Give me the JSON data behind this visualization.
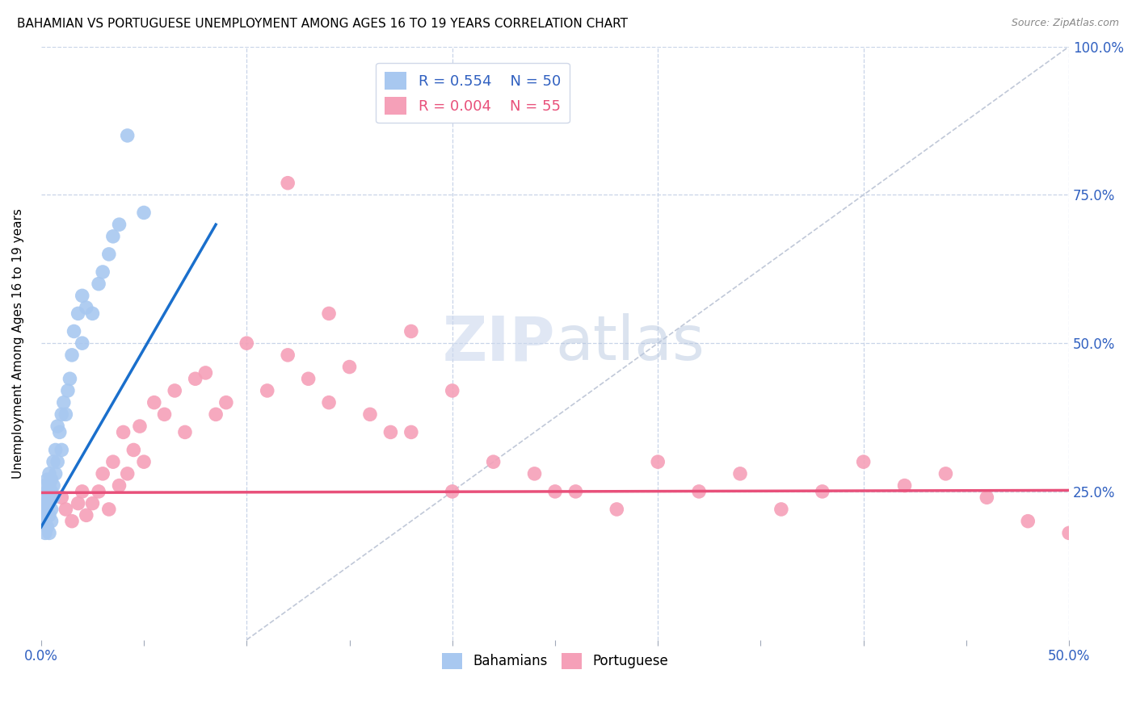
{
  "title": "BAHAMIAN VS PORTUGUESE UNEMPLOYMENT AMONG AGES 16 TO 19 YEARS CORRELATION CHART",
  "source": "Source: ZipAtlas.com",
  "ylabel": "Unemployment Among Ages 16 to 19 years",
  "xlim": [
    0,
    0.5
  ],
  "ylim": [
    0,
    1.0
  ],
  "xticks": [
    0.0,
    0.05,
    0.1,
    0.15,
    0.2,
    0.25,
    0.3,
    0.35,
    0.4,
    0.45,
    0.5
  ],
  "xticklabels": [
    "0.0%",
    "",
    "",
    "",
    "",
    "",
    "",
    "",
    "",
    "",
    "50.0%"
  ],
  "yticks": [
    0.0,
    0.25,
    0.5,
    0.75,
    1.0
  ],
  "yticklabels": [
    "",
    "25.0%",
    "50.0%",
    "75.0%",
    "100.0%"
  ],
  "watermark_zip": "ZIP",
  "watermark_atlas": "atlas",
  "legend_label1": "Bahamians",
  "legend_label2": "Portuguese",
  "bahamian_color": "#a8c8f0",
  "portuguese_color": "#f5a0b8",
  "bahamian_line_color": "#1a6fcc",
  "portuguese_line_color": "#e8507a",
  "ref_line_color": "#c0c8d8",
  "grid_color": "#c8d4e8",
  "legend_blue": "#3060c0",
  "legend_pink": "#e8507a",
  "bahamian_x": [
    0.001,
    0.001,
    0.001,
    0.002,
    0.002,
    0.002,
    0.002,
    0.002,
    0.003,
    0.003,
    0.003,
    0.003,
    0.003,
    0.004,
    0.004,
    0.004,
    0.004,
    0.004,
    0.005,
    0.005,
    0.005,
    0.005,
    0.006,
    0.006,
    0.006,
    0.007,
    0.007,
    0.008,
    0.008,
    0.009,
    0.01,
    0.01,
    0.011,
    0.012,
    0.013,
    0.014,
    0.015,
    0.016,
    0.018,
    0.02,
    0.02,
    0.022,
    0.025,
    0.028,
    0.03,
    0.033,
    0.035,
    0.038,
    0.042,
    0.05
  ],
  "bahamian_y": [
    0.2,
    0.22,
    0.23,
    0.18,
    0.2,
    0.22,
    0.24,
    0.26,
    0.19,
    0.21,
    0.23,
    0.25,
    0.27,
    0.18,
    0.21,
    0.24,
    0.26,
    0.28,
    0.2,
    0.22,
    0.25,
    0.27,
    0.24,
    0.26,
    0.3,
    0.28,
    0.32,
    0.3,
    0.36,
    0.35,
    0.32,
    0.38,
    0.4,
    0.38,
    0.42,
    0.44,
    0.48,
    0.52,
    0.55,
    0.5,
    0.58,
    0.56,
    0.55,
    0.6,
    0.62,
    0.65,
    0.68,
    0.7,
    0.85,
    0.72
  ],
  "portuguese_x": [
    0.01,
    0.012,
    0.015,
    0.018,
    0.02,
    0.022,
    0.025,
    0.028,
    0.03,
    0.033,
    0.035,
    0.038,
    0.04,
    0.042,
    0.045,
    0.048,
    0.05,
    0.055,
    0.06,
    0.065,
    0.07,
    0.075,
    0.08,
    0.085,
    0.09,
    0.1,
    0.11,
    0.12,
    0.13,
    0.14,
    0.15,
    0.16,
    0.17,
    0.18,
    0.2,
    0.22,
    0.24,
    0.26,
    0.28,
    0.3,
    0.32,
    0.34,
    0.36,
    0.38,
    0.4,
    0.42,
    0.44,
    0.46,
    0.48,
    0.5,
    0.12,
    0.14,
    0.2,
    0.25,
    0.18
  ],
  "portuguese_y": [
    0.24,
    0.22,
    0.2,
    0.23,
    0.25,
    0.21,
    0.23,
    0.25,
    0.28,
    0.22,
    0.3,
    0.26,
    0.35,
    0.28,
    0.32,
    0.36,
    0.3,
    0.4,
    0.38,
    0.42,
    0.35,
    0.44,
    0.45,
    0.38,
    0.4,
    0.5,
    0.42,
    0.48,
    0.44,
    0.4,
    0.46,
    0.38,
    0.35,
    0.52,
    0.42,
    0.3,
    0.28,
    0.25,
    0.22,
    0.3,
    0.25,
    0.28,
    0.22,
    0.25,
    0.3,
    0.26,
    0.28,
    0.24,
    0.2,
    0.18,
    0.77,
    0.55,
    0.25,
    0.25,
    0.35
  ],
  "bah_line_x0": 0.0,
  "bah_line_y0": 0.19,
  "bah_line_x1": 0.085,
  "bah_line_y1": 0.7,
  "por_line_x0": 0.0,
  "por_line_y0": 0.248,
  "por_line_x1": 0.5,
  "por_line_y1": 0.252,
  "ref_line_x0": 0.1,
  "ref_line_y0": 0.0,
  "ref_line_x1": 0.5,
  "ref_line_y1": 1.0
}
